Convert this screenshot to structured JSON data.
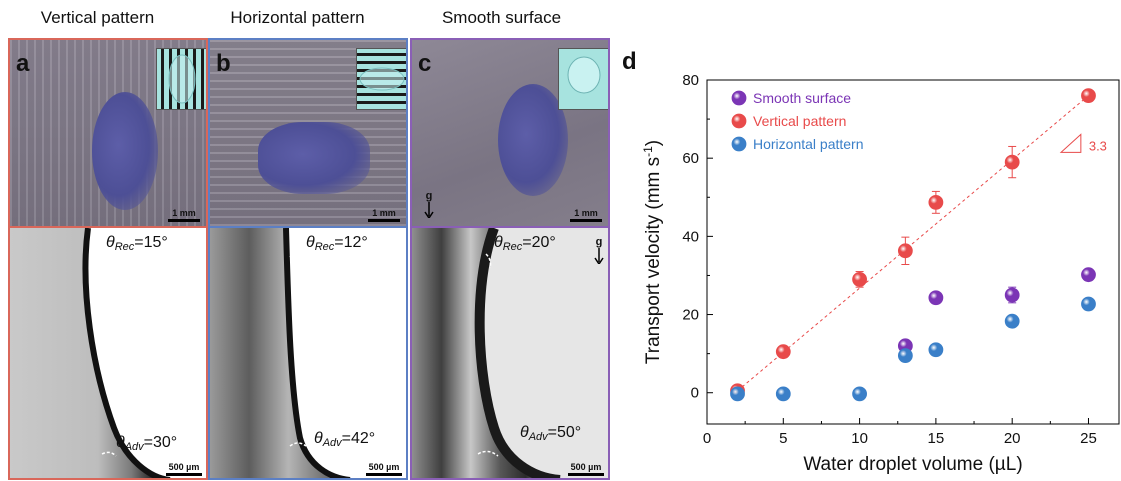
{
  "panels": [
    {
      "letter": "a",
      "title": "Vertical pattern",
      "top_scale": "1 mm",
      "bottom_scale": "500 µm",
      "rec_label": "θ",
      "rec_sub": "Rec",
      "rec_value": "=15°",
      "adv_label": "θ",
      "adv_sub": "Adv",
      "adv_value": "=30°",
      "frame_color": "#d9675a"
    },
    {
      "letter": "b",
      "title": "Horizontal pattern",
      "top_scale": "1 mm",
      "bottom_scale": "500 µm",
      "rec_label": "θ",
      "rec_sub": "Rec",
      "rec_value": "=12°",
      "adv_label": "θ",
      "adv_sub": "Adv",
      "adv_value": "=42°",
      "frame_color": "#5c7fc4"
    },
    {
      "letter": "c",
      "title": "Smooth surface",
      "top_scale": "1 mm",
      "bottom_scale": "500 µm",
      "rec_label": "θ",
      "rec_sub": "Rec",
      "rec_value": "=20°",
      "adv_label": "θ",
      "adv_sub": "Adv",
      "adv_value": "=50°",
      "frame_color": "#8a5fb6",
      "gravity_top": "g",
      "gravity_bottom": "g"
    }
  ],
  "chart_data": {
    "type": "scatter",
    "panel_letter": "d",
    "xlabel": "Water droplet volume (µL)",
    "ylabel": "Transport velocity (mm s",
    "ylabel_sup": "-1",
    "ylabel_end": ")",
    "xlim": [
      0,
      27
    ],
    "ylim": [
      -8,
      80
    ],
    "x_ticks": [
      0,
      5,
      10,
      15,
      20,
      25
    ],
    "y_ticks": [
      0,
      20,
      40,
      60,
      80
    ],
    "legend_position": "top-left",
    "series": [
      {
        "name": "Smooth surface",
        "color": "#7b35b5",
        "x": [
          13,
          15,
          20,
          25
        ],
        "y": [
          12,
          24.3,
          25,
          30.2
        ],
        "err": [
          0.6,
          0.6,
          2.0,
          0.6
        ]
      },
      {
        "name": "Vertical pattern",
        "color": "#e84a4a",
        "x": [
          2,
          5,
          10,
          13,
          15,
          20,
          25
        ],
        "y": [
          0.5,
          10.5,
          29,
          36.3,
          48.7,
          59,
          76
        ],
        "err": [
          0.4,
          0.5,
          2.0,
          3.5,
          2.8,
          4.0,
          0.6
        ]
      },
      {
        "name": "Horizontal pattern",
        "color": "#3a7fc8",
        "x": [
          2,
          5,
          10,
          13,
          15,
          20,
          25
        ],
        "y": [
          -0.3,
          -0.3,
          -0.3,
          9.5,
          11,
          18.3,
          22.7
        ],
        "err": [
          0,
          0,
          0,
          0.5,
          0.5,
          0.5,
          0.5
        ]
      }
    ],
    "fit_line": {
      "x": [
        2,
        25
      ],
      "y": [
        0.5,
        76
      ]
    },
    "slope_annotation": "3.3"
  }
}
